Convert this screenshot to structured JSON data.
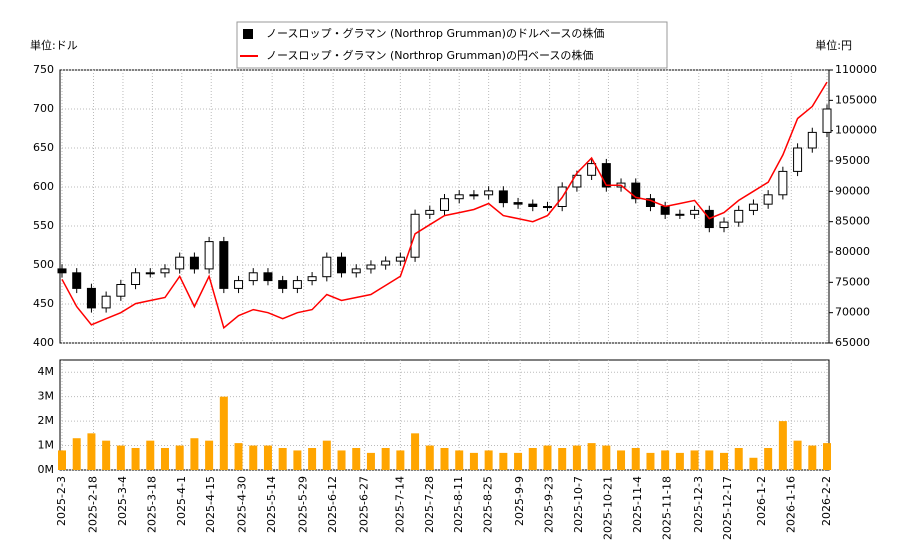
{
  "chart_data": [
    {
      "type": "candlestick",
      "y_unit_label": "単位:ドル",
      "y2_unit_label": "単位:円",
      "x": [
        "2025-2-3",
        "2025-2-10",
        "2025-2-17",
        "2025-2-24",
        "2025-3-3",
        "2025-3-10",
        "2025-3-17",
        "2025-3-24",
        "2025-3-31",
        "2025-4-7",
        "2025-4-14",
        "2025-4-21",
        "2025-4-28",
        "2025-5-5",
        "2025-5-12",
        "2025-5-19",
        "2025-5-26",
        "2025-6-2",
        "2025-6-9",
        "2025-6-16",
        "2025-6-23",
        "2025-6-30",
        "2025-7-7",
        "2025-7-14",
        "2025-7-21",
        "2025-7-28",
        "2025-8-4",
        "2025-8-11",
        "2025-8-18",
        "2025-8-25",
        "2025-9-1",
        "2025-9-8",
        "2025-9-15",
        "2025-9-22",
        "2025-9-29",
        "2025-10-6",
        "2025-10-13",
        "2025-10-20",
        "2025-10-27",
        "2025-11-3",
        "2025-11-10",
        "2025-11-17",
        "2025-11-24",
        "2025-12-1",
        "2025-12-8",
        "2025-12-15",
        "2025-12-22",
        "2025-12-29",
        "2026-1-5",
        "2026-1-12",
        "2026-1-19",
        "2026-1-26",
        "2026-2-2"
      ],
      "ylim": [
        400,
        750
      ],
      "yticks": [
        400,
        450,
        500,
        550,
        600,
        650,
        700,
        750
      ],
      "y2lim": [
        65000,
        110000
      ],
      "y2ticks": [
        65000,
        70000,
        75000,
        80000,
        85000,
        90000,
        95000,
        100000,
        105000,
        110000
      ],
      "grid": true,
      "legend": "top",
      "series": [
        {
          "name": "ノースロップ・グラマン (Northrop Grumman)のドルベースの株価",
          "color": "#000000",
          "open": [
            495,
            490,
            470,
            445,
            460,
            475,
            490,
            490,
            495,
            510,
            495,
            530,
            470,
            480,
            490,
            480,
            470,
            480,
            485,
            510,
            490,
            495,
            500,
            505,
            510,
            565,
            570,
            585,
            590,
            590,
            595,
            580,
            578,
            575,
            575,
            600,
            615,
            630,
            600,
            605,
            585,
            575,
            565,
            565,
            570,
            548,
            555,
            570,
            578,
            590,
            620,
            650,
            670
          ],
          "high": [
            501,
            496,
            476,
            466,
            481,
            496,
            496,
            501,
            516,
            516,
            536,
            536,
            486,
            496,
            496,
            486,
            486,
            491,
            516,
            516,
            501,
            506,
            511,
            516,
            571,
            576,
            591,
            596,
            596,
            601,
            601,
            586,
            584,
            581,
            606,
            621,
            636,
            636,
            611,
            611,
            591,
            581,
            571,
            576,
            576,
            561,
            576,
            584,
            596,
            626,
            656,
            676,
            706
          ],
          "low": [
            484,
            464,
            439,
            439,
            454,
            469,
            484,
            484,
            489,
            489,
            489,
            464,
            464,
            474,
            474,
            464,
            464,
            474,
            479,
            484,
            484,
            489,
            494,
            499,
            504,
            559,
            564,
            579,
            584,
            584,
            574,
            572,
            569,
            569,
            569,
            594,
            609,
            594,
            594,
            579,
            569,
            559,
            559,
            559,
            542,
            542,
            549,
            564,
            572,
            584,
            614,
            644,
            664
          ],
          "close": [
            490,
            470,
            445,
            460,
            475,
            490,
            490,
            495,
            510,
            495,
            530,
            470,
            480,
            490,
            480,
            470,
            480,
            485,
            510,
            490,
            495,
            500,
            505,
            510,
            565,
            570,
            585,
            590,
            590,
            595,
            580,
            578,
            575,
            575,
            600,
            615,
            630,
            600,
            605,
            585,
            575,
            565,
            565,
            570,
            548,
            555,
            570,
            578,
            590,
            620,
            650,
            670,
            700
          ]
        },
        {
          "name": "ノースロップ・グラマン (Northrop Grumman)の円ベースの株価",
          "color": "#ff0000",
          "axis": "y2",
          "values": [
            75500,
            71000,
            68000,
            69000,
            70000,
            71500,
            72000,
            72500,
            76000,
            71000,
            76000,
            67500,
            69500,
            70500,
            70000,
            69000,
            70000,
            70500,
            73000,
            72000,
            72500,
            73000,
            74500,
            76000,
            83000,
            84500,
            86000,
            86500,
            87000,
            88000,
            86000,
            85500,
            85000,
            86000,
            89000,
            93000,
            95500,
            91000,
            91000,
            89000,
            88500,
            87500,
            88000,
            88500,
            85500,
            86500,
            88500,
            90000,
            91500,
            96000,
            102000,
            104000,
            108000
          ]
        }
      ]
    },
    {
      "type": "bar",
      "color": "#ffa500",
      "xlim": [
        "2025-2-3",
        "2026-2-2"
      ],
      "xticks": [
        "2025-2-3",
        "2025-2-18",
        "2025-3-4",
        "2025-3-18",
        "2025-4-1",
        "2025-4-15",
        "2025-4-30",
        "2025-5-14",
        "2025-5-29",
        "2025-6-12",
        "2025-6-27",
        "2025-7-14",
        "2025-7-28",
        "2025-8-11",
        "2025-8-25",
        "2025-9-9",
        "2025-9-23",
        "2025-10-7",
        "2025-10-21",
        "2025-11-4",
        "2025-11-18",
        "2025-12-3",
        "2025-12-17",
        "2026-1-2",
        "2026-1-16",
        "2026-2-2"
      ],
      "ylim": [
        0,
        4500000
      ],
      "yticks": [
        {
          "value": 0,
          "label": "0M"
        },
        {
          "value": 1000000,
          "label": "1M"
        },
        {
          "value": 2000000,
          "label": "2M"
        },
        {
          "value": 3000000,
          "label": "3M"
        },
        {
          "value": 4000000,
          "label": "4M"
        }
      ],
      "grid": true,
      "values": [
        800000,
        1300000,
        1500000,
        1200000,
        1000000,
        900000,
        1200000,
        900000,
        1000000,
        1300000,
        1200000,
        3000000,
        1100000,
        1000000,
        1000000,
        900000,
        800000,
        900000,
        1200000,
        800000,
        900000,
        700000,
        900000,
        800000,
        1500000,
        1000000,
        900000,
        800000,
        700000,
        800000,
        700000,
        700000,
        900000,
        1000000,
        900000,
        1000000,
        1100000,
        1000000,
        800000,
        900000,
        700000,
        800000,
        700000,
        800000,
        800000,
        700000,
        900000,
        500000,
        900000,
        2000000,
        1200000,
        1000000,
        1100000
      ]
    }
  ]
}
